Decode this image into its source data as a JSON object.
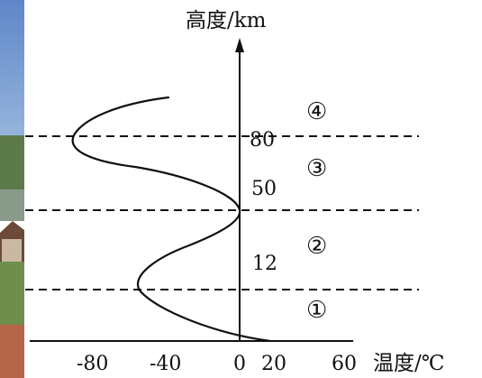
{
  "y_axis_title": "高度/km",
  "x_axis_title": "温度/℃",
  "altitude_labels": [
    "12",
    "50",
    "80"
  ],
  "layer_labels": [
    "①",
    "②",
    "③",
    "④"
  ],
  "x_ticks": [
    "-80",
    "-40",
    "0",
    "20",
    "60"
  ],
  "colors": {
    "ink": "#111111",
    "background": "#ffffff"
  },
  "background_photo": "village scene with sky, trees, house and grass (partially visible at left edge)"
}
